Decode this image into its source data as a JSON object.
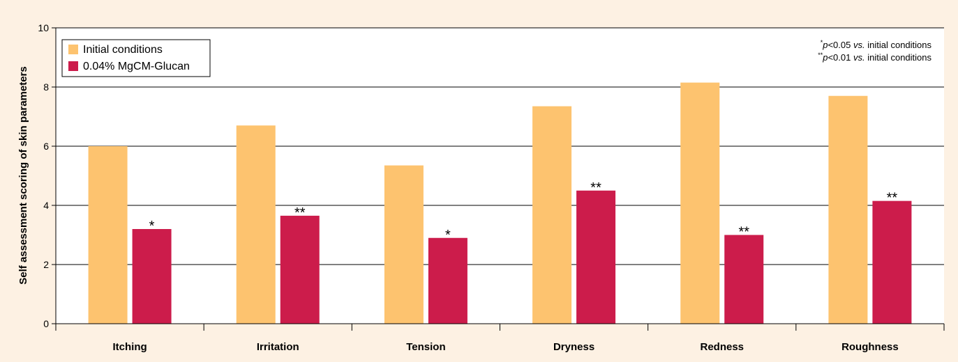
{
  "chart_data": {
    "type": "bar",
    "ylabel": "Self assessment scoring of skin parameters",
    "ylim": [
      0,
      10
    ],
    "yticks": [
      0,
      2,
      4,
      6,
      8,
      10
    ],
    "grid": true,
    "legend_position": "top-left",
    "categories": [
      "Itching",
      "Irritation",
      "Tension",
      "Dryness",
      "Redness",
      "Roughness"
    ],
    "series": [
      {
        "name": "Initial conditions",
        "color": "#fdc36f",
        "values": [
          6.0,
          6.7,
          5.35,
          7.35,
          8.15,
          7.7
        ],
        "significance": [
          "",
          "",
          "",
          "",
          "",
          ""
        ]
      },
      {
        "name": "0.04% MgCM-Glucan",
        "color": "#cc1c4b",
        "values": [
          3.2,
          3.65,
          2.9,
          4.5,
          3.0,
          4.15
        ],
        "significance": [
          "*",
          "**",
          "*",
          "**",
          "**",
          "**"
        ]
      }
    ],
    "notes": [
      {
        "marker": "*",
        "p": "p",
        "rest": "<0.05 ",
        "vs": "vs.",
        "tail": " initial conditions"
      },
      {
        "marker": "**",
        "p": "p",
        "rest": "<0.01 ",
        "vs": "vs.",
        "tail": " initial conditions"
      }
    ]
  }
}
